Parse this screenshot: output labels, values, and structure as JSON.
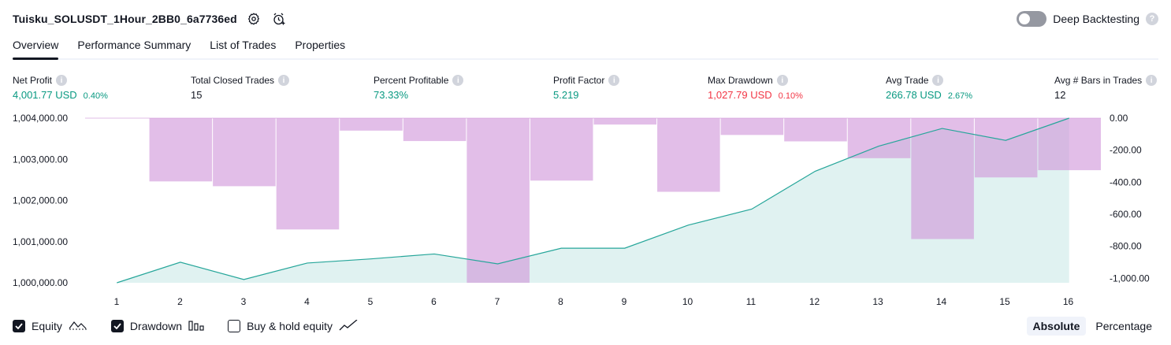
{
  "header": {
    "title": "Tuisku_SOLUSDT_1Hour_2BB0_6a7736ed",
    "settings_icon": "gear-icon",
    "add_alert_icon": "alarm-plus-icon",
    "deep_backtesting_label": "Deep Backtesting",
    "deep_backtesting_on": false,
    "help_icon": "question-icon"
  },
  "tabs": [
    {
      "label": "Overview",
      "active": true
    },
    {
      "label": "Performance Summary",
      "active": false
    },
    {
      "label": "List of Trades",
      "active": false
    },
    {
      "label": "Properties",
      "active": false
    }
  ],
  "metrics": [
    {
      "label": "Net Profit",
      "value": "4,001.77 USD",
      "pct": "0.40%",
      "tone": "pos"
    },
    {
      "label": "Total Closed Trades",
      "value": "15",
      "pct": "",
      "tone": "neutral"
    },
    {
      "label": "Percent Profitable",
      "value": "73.33%",
      "pct": "",
      "tone": "pos"
    },
    {
      "label": "Profit Factor",
      "value": "5.219",
      "pct": "",
      "tone": "pos"
    },
    {
      "label": "Max Drawdown",
      "value": "1,027.79 USD",
      "pct": "0.10%",
      "tone": "neg"
    },
    {
      "label": "Avg Trade",
      "value": "266.78 USD",
      "pct": "2.67%",
      "tone": "pos"
    },
    {
      "label": "Avg # Bars in Trades",
      "value": "12",
      "pct": "",
      "tone": "neutral"
    }
  ],
  "chart_data": {
    "type": "line",
    "x": [
      1,
      2,
      3,
      4,
      5,
      6,
      7,
      8,
      9,
      10,
      11,
      12,
      13,
      14,
      15,
      16
    ],
    "series": [
      {
        "name": "Equity",
        "type": "area",
        "axis": "left",
        "color": "#26a69a",
        "values": [
          1000000,
          1000500,
          1000080,
          1000480,
          1000580,
          1000700,
          1000460,
          1000840,
          1000840,
          1001400,
          1001790,
          1002710,
          1003320,
          1003750,
          1003460,
          1004000
        ]
      },
      {
        "name": "Drawdown",
        "type": "bar",
        "axis": "right",
        "color": "#ce93d8",
        "values": [
          0,
          -395,
          -425,
          -695,
          -78,
          -143,
          -1028,
          -390,
          -40,
          -460,
          -105,
          -145,
          -250,
          -755,
          -370,
          -325
        ]
      }
    ],
    "left_axis": {
      "ticks": [
        "1,004,000.00",
        "1,003,000.00",
        "1,002,000.00",
        "1,001,000.00",
        "1,000,000.00"
      ],
      "range": [
        1000000,
        1004000
      ]
    },
    "right_axis": {
      "ticks": [
        "0.00",
        "-200.00",
        "-400.00",
        "-600.00",
        "-800.00",
        "-1,000.00"
      ],
      "range": [
        -1028,
        0
      ]
    },
    "x_ticks": [
      "1",
      "2",
      "3",
      "4",
      "5",
      "6",
      "7",
      "8",
      "9",
      "10",
      "11",
      "12",
      "13",
      "14",
      "15",
      "16"
    ],
    "grid": false
  },
  "legend": {
    "equity_label": "Equity",
    "equity_checked": true,
    "drawdown_label": "Drawdown",
    "drawdown_checked": true,
    "buyhold_label": "Buy & hold equity",
    "buyhold_checked": false
  },
  "modes": {
    "absolute_label": "Absolute",
    "percentage_label": "Percentage",
    "active": "Absolute"
  }
}
